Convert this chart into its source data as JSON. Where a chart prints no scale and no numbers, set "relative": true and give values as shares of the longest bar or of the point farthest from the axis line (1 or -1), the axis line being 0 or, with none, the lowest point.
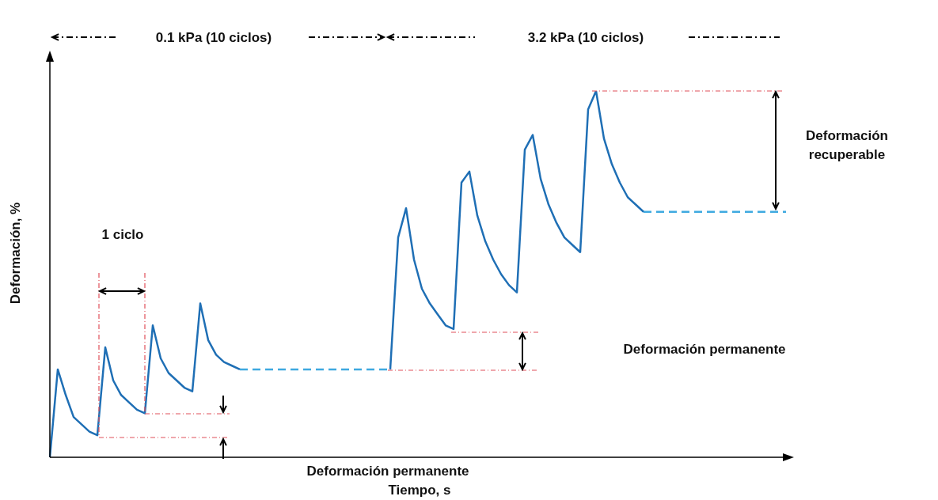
{
  "chart_data": {
    "type": "line",
    "relative": true,
    "xlabel": "Tiempo, s",
    "ylabel": "Deformación, %",
    "categories": [
      null,
      null,
      null,
      null,
      null,
      null,
      null,
      null,
      null,
      null,
      null,
      null,
      null,
      null,
      null,
      null,
      null,
      null,
      null,
      null,
      null,
      null,
      null,
      null,
      null,
      null,
      null,
      null,
      null,
      null,
      null,
      null,
      null,
      null,
      null,
      null,
      null,
      null,
      null,
      null,
      null,
      null,
      null,
      null,
      null,
      null,
      null,
      null,
      null,
      null,
      null,
      null,
      null,
      null,
      null,
      null,
      null,
      null,
      null,
      null,
      null,
      null,
      null,
      null,
      null,
      null,
      null,
      null,
      null,
      null,
      null,
      null,
      null,
      null,
      null,
      null,
      null,
      null,
      null,
      null,
      null,
      null,
      null,
      null,
      null,
      null,
      null,
      null,
      null,
      null,
      null,
      null,
      null,
      null
    ],
    "series": [
      {
        "color": "#1f6fb5",
        "line_style": "solid",
        "values": [
          0,
          0.24,
          0.17,
          0.11,
          0.09,
          0.07,
          0.06,
          0.3,
          0.21,
          0.17,
          0.15,
          0.13,
          0.12,
          0.36,
          0.27,
          0.23,
          0.21,
          0.19,
          0.18,
          0.42,
          0.32,
          0.28,
          0.26,
          0.25,
          0.24,
          null,
          null,
          null,
          null,
          null,
          null,
          null,
          null,
          null,
          null,
          null,
          null,
          null,
          null,
          null,
          null,
          null,
          null,
          null,
          null,
          null,
          null,
          null,
          null,
          null,
          null,
          null,
          null,
          null,
          null,
          null,
          null,
          null,
          null,
          null,
          null,
          null,
          null,
          null,
          null,
          null,
          null,
          null,
          null,
          null,
          null,
          null,
          null,
          null,
          null,
          null,
          null,
          null,
          null,
          null,
          null,
          null,
          null,
          null,
          null,
          null,
          null,
          null,
          null,
          null,
          null,
          null,
          null,
          null
        ]
      },
      {
        "color": "#3fa9e0",
        "line_style": "dashed",
        "values": [
          null,
          null,
          null,
          null,
          null,
          null,
          null,
          null,
          null,
          null,
          null,
          null,
          null,
          null,
          null,
          null,
          null,
          null,
          null,
          null,
          null,
          null,
          null,
          null,
          0.24,
          0.24,
          0.24,
          0.24,
          0.24,
          0.24,
          0.24,
          0.24,
          0.24,
          0.24,
          0.24,
          0.24,
          0.24,
          0.24,
          0.24,
          0.24,
          0.24,
          0.24,
          0.24,
          0.24,
          null,
          null,
          null,
          null,
          null,
          null,
          null,
          null,
          null,
          null,
          null,
          null,
          null,
          null,
          null,
          null,
          null,
          null,
          null,
          null,
          null,
          null,
          null,
          null,
          null,
          null,
          null,
          null,
          null,
          null,
          null,
          null,
          null,
          null,
          null,
          null,
          null,
          null,
          null,
          null,
          null,
          null,
          null,
          null,
          null,
          null,
          null,
          null,
          null,
          null
        ]
      },
      {
        "color": "#1f6fb5",
        "line_style": "solid",
        "values": [
          null,
          null,
          null,
          null,
          null,
          null,
          null,
          null,
          null,
          null,
          null,
          null,
          null,
          null,
          null,
          null,
          null,
          null,
          null,
          null,
          null,
          null,
          null,
          null,
          null,
          null,
          null,
          null,
          null,
          null,
          null,
          null,
          null,
          null,
          null,
          null,
          null,
          null,
          null,
          null,
          null,
          null,
          null,
          0.24,
          0.6,
          0.68,
          0.54,
          0.46,
          0.42,
          0.39,
          0.36,
          0.35,
          0.75,
          0.78,
          0.66,
          0.59,
          0.54,
          0.5,
          0.47,
          0.45,
          0.84,
          0.88,
          0.76,
          0.69,
          0.64,
          0.6,
          0.58,
          0.56,
          0.95,
          1,
          0.87,
          0.8,
          0.75,
          0.71,
          0.69,
          0.67,
          null,
          null,
          null,
          null,
          null,
          null,
          null,
          null,
          null,
          null,
          null,
          null,
          null,
          null,
          null,
          null,
          null,
          null
        ]
      },
      {
        "color": "#3fa9e0",
        "line_style": "dashed",
        "values": [
          null,
          null,
          null,
          null,
          null,
          null,
          null,
          null,
          null,
          null,
          null,
          null,
          null,
          null,
          null,
          null,
          null,
          null,
          null,
          null,
          null,
          null,
          null,
          null,
          null,
          null,
          null,
          null,
          null,
          null,
          null,
          null,
          null,
          null,
          null,
          null,
          null,
          null,
          null,
          null,
          null,
          null,
          null,
          null,
          null,
          null,
          null,
          null,
          null,
          null,
          null,
          null,
          null,
          null,
          null,
          null,
          null,
          null,
          null,
          null,
          null,
          null,
          null,
          null,
          null,
          null,
          null,
          null,
          null,
          null,
          null,
          null,
          null,
          null,
          null,
          0.67,
          0.67,
          0.67,
          0.67,
          0.67,
          0.67,
          0.67,
          0.67,
          0.67,
          0.67,
          0.67,
          0.67,
          0.67,
          0.67,
          0.67,
          0.67,
          0.67,
          0.67,
          0.67
        ]
      }
    ],
    "annotations": [
      "0.1 kPa (10 ciclos)",
      "3.2 kPa (10 ciclos)",
      "1 ciclo",
      "Deformación recuperable",
      "Deformación permanente",
      "Deformación permanente"
    ]
  }
}
